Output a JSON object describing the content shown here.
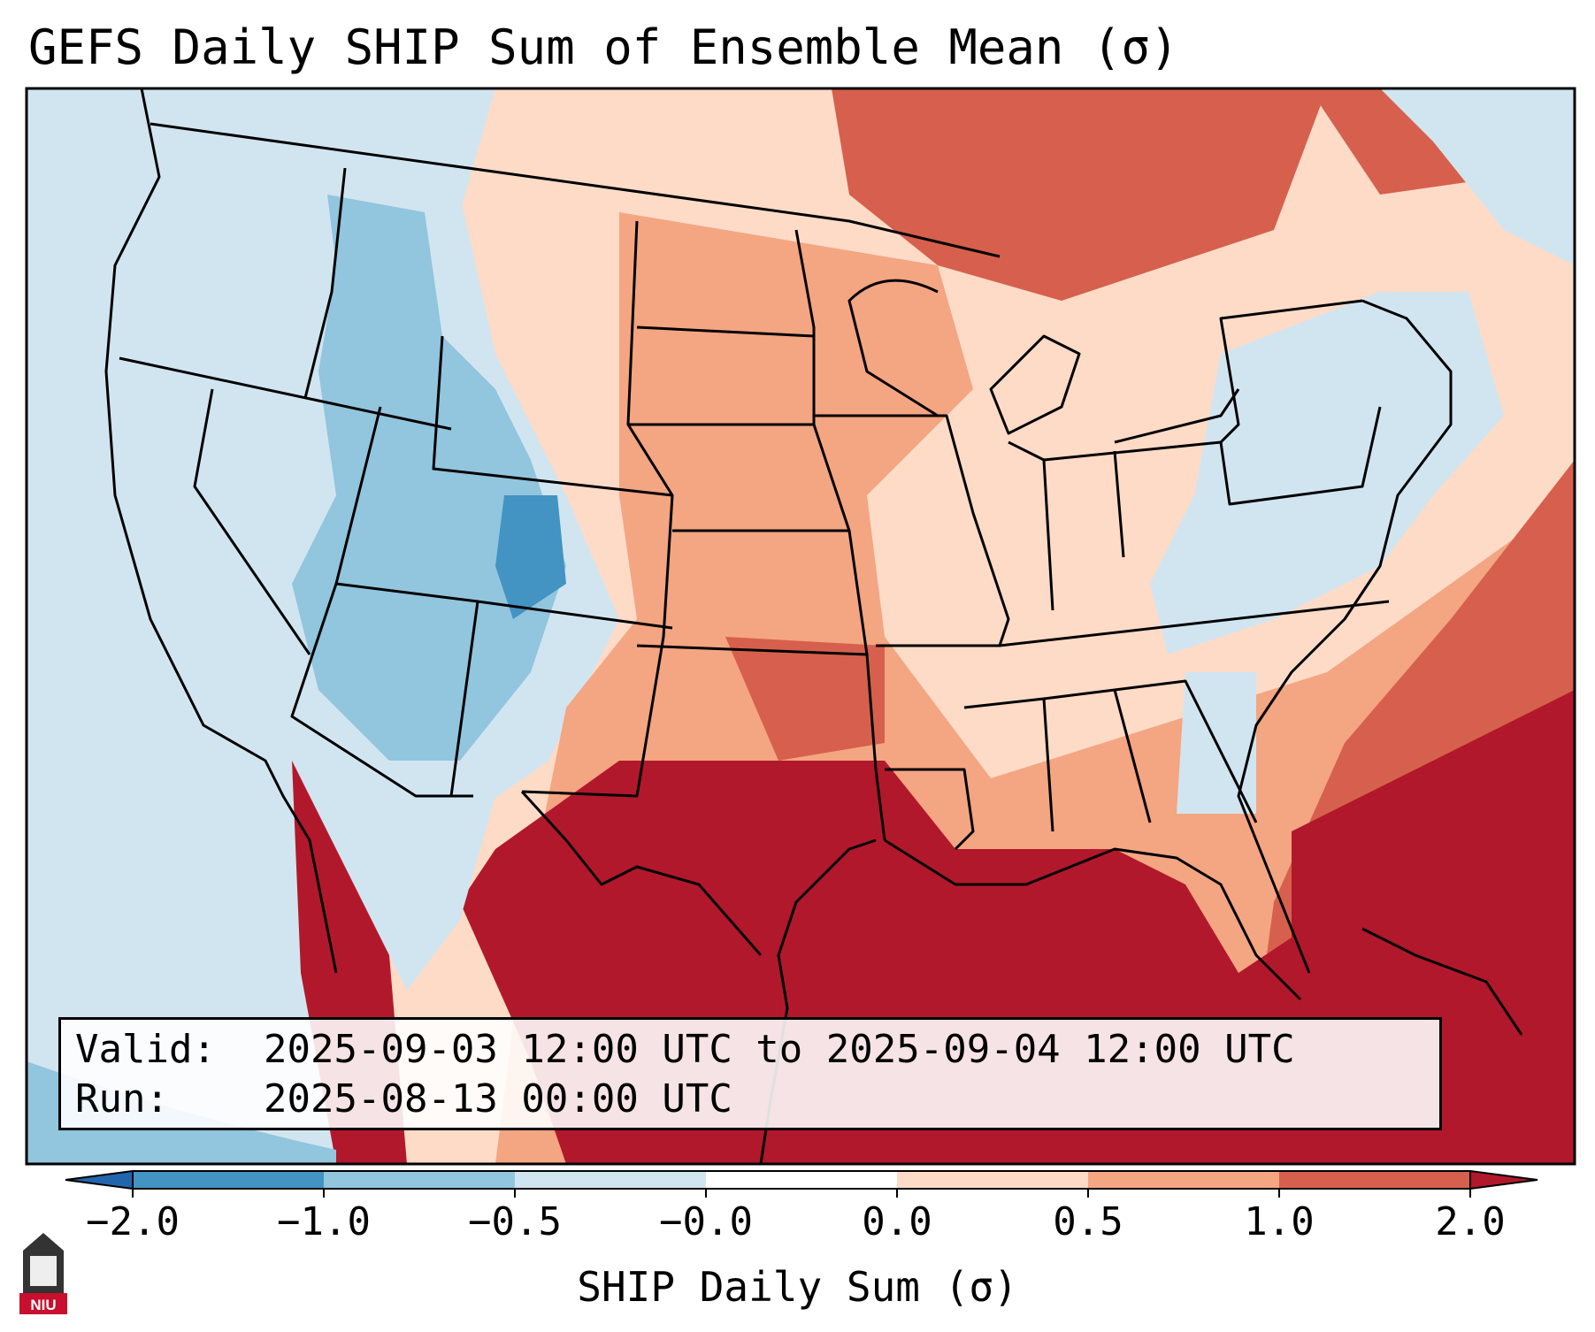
{
  "title": "GEFS Daily SHIP Sum of Ensemble Mean (σ)",
  "info": {
    "valid_label": "Valid:",
    "valid_text": "2025-09-03 12:00 UTC to 2025-09-04 12:00 UTC",
    "run_label": "Run:",
    "run_text": "2025-08-13 00:00 UTC"
  },
  "colorbar": {
    "label": "SHIP Daily Sum (σ)",
    "tick_labels": [
      "−2.0",
      "−1.0",
      "−0.5",
      "−0.0",
      "0.0",
      "0.5",
      "1.0",
      "2.0"
    ],
    "bins": [
      {
        "range": "< -2.0",
        "color": "#2166ac"
      },
      {
        "range": "-2.0 to -1.0",
        "color": "#4393c3"
      },
      {
        "range": "-1.0 to -0.5",
        "color": "#92c5de"
      },
      {
        "range": "-0.5 to -0.0",
        "color": "#d1e5f0"
      },
      {
        "range": "-0.0 to 0.0",
        "color": "#ffffff"
      },
      {
        "range": "0.0 to 0.5",
        "color": "#fddbc7"
      },
      {
        "range": "0.5 to 1.0",
        "color": "#f4a582"
      },
      {
        "range": "1.0 to 2.0",
        "color": "#d6604d"
      },
      {
        "range": "> 2.0",
        "color": "#b2182b"
      }
    ]
  },
  "map": {
    "region": "Contiguous United States",
    "ocean_color": "#d1e5f0"
  },
  "logo": {
    "text": "NIU"
  }
}
